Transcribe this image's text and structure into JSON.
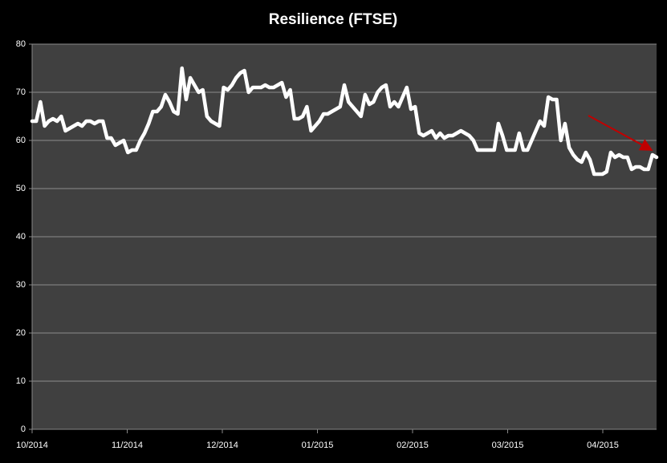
{
  "chart_data": {
    "type": "line",
    "title": "Resilience (FTSE)",
    "x_labels": [
      "10/2014",
      "11/2014",
      "12/2014",
      "01/2015",
      "02/2015",
      "03/2015",
      "04/2015"
    ],
    "series": [
      {
        "color": "#ffffff",
        "values": [
          64,
          64,
          68,
          63,
          64,
          64.5,
          64,
          65,
          62,
          62.5,
          63,
          63.5,
          63,
          64,
          64,
          63.5,
          64,
          64,
          60.5,
          60.5,
          59,
          59.5,
          60,
          57.5,
          58,
          58,
          60,
          61.5,
          63.5,
          66,
          66,
          67,
          69.5,
          68,
          66,
          65.5,
          75,
          68.5,
          73,
          71.5,
          70,
          70.5,
          65,
          64,
          63.5,
          63,
          71,
          70.5,
          71.5,
          73,
          74,
          74.5,
          70,
          71,
          71,
          71,
          71.5,
          71,
          71,
          71.5,
          72,
          69,
          70.5,
          64.5,
          64.5,
          65,
          67,
          62,
          63,
          64,
          65.5,
          65.5,
          66,
          66.5,
          67,
          71.5,
          68,
          67,
          66,
          65,
          69.5,
          67.5,
          68,
          70,
          71,
          71.5,
          67,
          68,
          67,
          69,
          71,
          66.5,
          67,
          61.5,
          61,
          61.5,
          62,
          60.5,
          61.5,
          60.5,
          61,
          61,
          61.5,
          62,
          61.5,
          61,
          60,
          58,
          58,
          58,
          58,
          58,
          63.5,
          61,
          58,
          58,
          58,
          61.5,
          58,
          58,
          60,
          62,
          64,
          63,
          69,
          68.5,
          68.5,
          60,
          63.5,
          58.5,
          57,
          56,
          55.5,
          57.5,
          56,
          53,
          53,
          53,
          53.5,
          57.5,
          56.5,
          57,
          56.5,
          56.5,
          54,
          54.5,
          54.5,
          54,
          54,
          57,
          56.5
        ]
      }
    ],
    "ylim": [
      0,
      80
    ],
    "yticks": [
      0,
      10,
      20,
      30,
      40,
      50,
      60,
      70,
      80
    ],
    "grid": true
  }
}
